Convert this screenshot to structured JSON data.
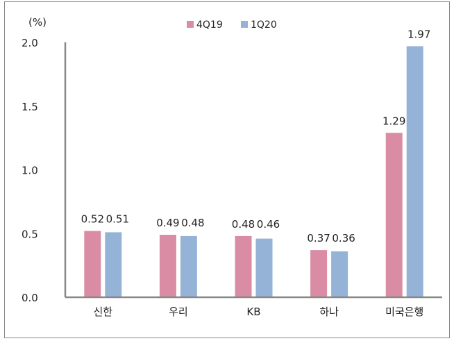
{
  "chart_data": {
    "type": "bar",
    "unit_label": "(%)",
    "categories": [
      "신한",
      "우리",
      "KB",
      "하나",
      "미국은행"
    ],
    "series": [
      {
        "name": "4Q19",
        "values": [
          0.52,
          0.49,
          0.48,
          0.37,
          1.29
        ],
        "labels": [
          "0.52",
          "0.49",
          "0.48",
          "0.37",
          "1.29"
        ]
      },
      {
        "name": "1Q20",
        "values": [
          0.51,
          0.48,
          0.46,
          0.36,
          1.97
        ],
        "labels": [
          "0.51",
          "0.48",
          "0.46",
          "0.36",
          "1.97"
        ]
      }
    ],
    "yticks": [
      "0.0",
      "0.5",
      "1.0",
      "1.5",
      "2.0"
    ],
    "ylim": [
      0,
      2.0
    ],
    "grid": false,
    "legend": "top-center",
    "colors": {
      "4Q19": "#D98CA3",
      "1Q20": "#95B3D7"
    }
  }
}
